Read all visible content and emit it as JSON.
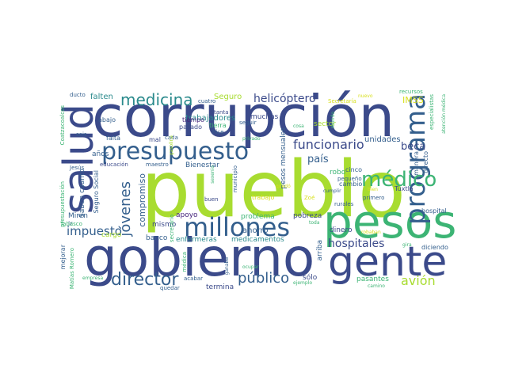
{
  "palette": {
    "navy": "#3b4a8a",
    "blue": "#345f8d",
    "teal": "#2a8a8c",
    "green": "#3cb474",
    "lime": "#a8dc30",
    "yellow": "#d8e020",
    "purple": "#44237a"
  },
  "words": {
    "pueblo": "pueblo",
    "corrupcion": "corrupción",
    "gobierno": "gobierno",
    "pesos": "pesos",
    "salud": "salud",
    "gente": "gente",
    "presupuesto": "presupuesto",
    "millones": "millones",
    "programa": "programa",
    "medico": "médico",
    "director": "director",
    "medicina": "medicina",
    "jovenes": "jóvenes",
    "funcionario": "funcionario",
    "impuesto": "impuesto",
    "helicoptero": "helicóptero",
    "publico": "público",
    "avion": "avión",
    "hospitales": "hospitales",
    "pais": "país",
    "beca": "beca",
    "unidades": "unidades",
    "trabajadores": "trabajadores",
    "compromiso": "compromiso",
    "falten": "falten",
    "seguro": "Seguro",
    "muchas": "muchas",
    "imss": "IMSS",
    "sector": "sector",
    "bienestar": "Bienestar",
    "ahorro": "ahorro",
    "problema": "problema",
    "pobreza": "pobreza",
    "enfermeras": "enfermeras",
    "medicamentos": "medicamentos",
    "pesos_mensuales": "pesos mensuales",
    "banco": "banco",
    "apoyo": "apoyo",
    "mismo": "mismo",
    "robo": "robo",
    "cambio": "cambio",
    "cinco": "cinco",
    "dinero": "dinero",
    "hospital": "hospital",
    "diciendo": "diciendo",
    "pasantes": "pasantes",
    "arriba": "arriba",
    "solo": "sólo",
    "termina": "termina",
    "mejorar": "mejorar",
    "saben_cuanto": "Saben cuánto",
    "seguro_social": "Seguro Social",
    "cargo": "cargo",
    "miren": "Miren",
    "ir": "ir",
    "falta": "falta",
    "mal": "mal",
    "abajo": "abajo",
    "pasado": "pasado",
    "tiempo": "tiempo",
    "tierra": "tierra",
    "cuatro": "cuatro",
    "tanta": "tanta",
    "hice": "hice",
    "seguir": "seguir",
    "cada": "cada",
    "anos": "años",
    "educacion": "educación",
    "maestro": "maestro",
    "jesus": "Jesús",
    "seis": "seis",
    "ducto": "ducto",
    "coatzacoalcos": "Coatzacoalcos",
    "presupuestacion": "presupuestación",
    "tabasco": "Tabasco",
    "empresa": "empresa",
    "matias_romero": "Matías Romero",
    "medica": "médica",
    "quedar": "quedar",
    "acabar": "acabar",
    "ejemplo": "ejemplo",
    "camino": "camino",
    "ocupar": "ocupar",
    "gira": "gira",
    "robaban": "robaban",
    "toda": "toda",
    "rurales": "rurales",
    "primero": "primero",
    "bien": "bien",
    "tuxtla": "Tuxtla",
    "buen": "buen",
    "trabajo": "trabajo",
    "zoe": "Zoé",
    "sexenio": "sexenio",
    "municipio": "municipio",
    "secretario": "secretario",
    "gasolina": "gasolina",
    "privado": "privado",
    "pequeno": "pequeño",
    "mundo": "mundo",
    "nuevo": "nuevo",
    "cosa": "cosa",
    "secretaria": "Secretaría",
    "recursos": "recursos",
    "especialistas": "especialistas",
    "atencion_medica": "atención médica",
    "manera": "manera",
    "directo": "directo",
    "cumplir": "cumplir",
    "ganaba": "ganaba",
    "quedo": "quedó"
  }
}
